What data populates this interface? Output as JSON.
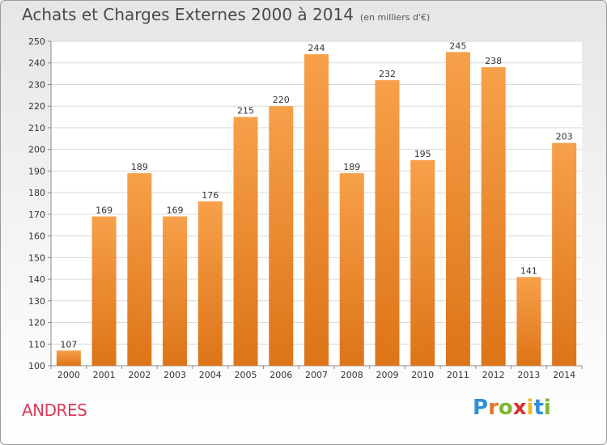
{
  "header": {
    "title": "Achats et Charges Externes 2000 à 2014",
    "subtitle": "(en milliers d'€)"
  },
  "footer": {
    "city": "ANDRES",
    "logo_letters": [
      "P",
      "r",
      "o",
      "x",
      "i",
      "t",
      "i"
    ],
    "logo_colors": [
      "#2e8fd6",
      "#e8742a",
      "#7cb82f",
      "#d4332f",
      "#f2b81d",
      "#2e8fd6",
      "#7cb82f"
    ]
  },
  "chart_data": {
    "type": "bar",
    "title": "Achats et Charges Externes 2000 à 2014",
    "subtitle": "(en milliers d'€)",
    "xlabel": "",
    "ylabel": "",
    "categories": [
      "2000",
      "2001",
      "2002",
      "2003",
      "2004",
      "2005",
      "2006",
      "2007",
      "2008",
      "2009",
      "2010",
      "2011",
      "2012",
      "2013",
      "2014"
    ],
    "values": [
      107,
      169,
      189,
      169,
      176,
      215,
      220,
      244,
      189,
      232,
      195,
      245,
      238,
      141,
      203
    ],
    "ylim": [
      100,
      250
    ],
    "yticks": [
      100,
      110,
      120,
      130,
      140,
      150,
      160,
      170,
      180,
      190,
      200,
      210,
      220,
      230,
      240,
      250
    ],
    "grid": true,
    "bar_color_top": "#f7a04a",
    "bar_color_bottom": "#dd7418"
  }
}
